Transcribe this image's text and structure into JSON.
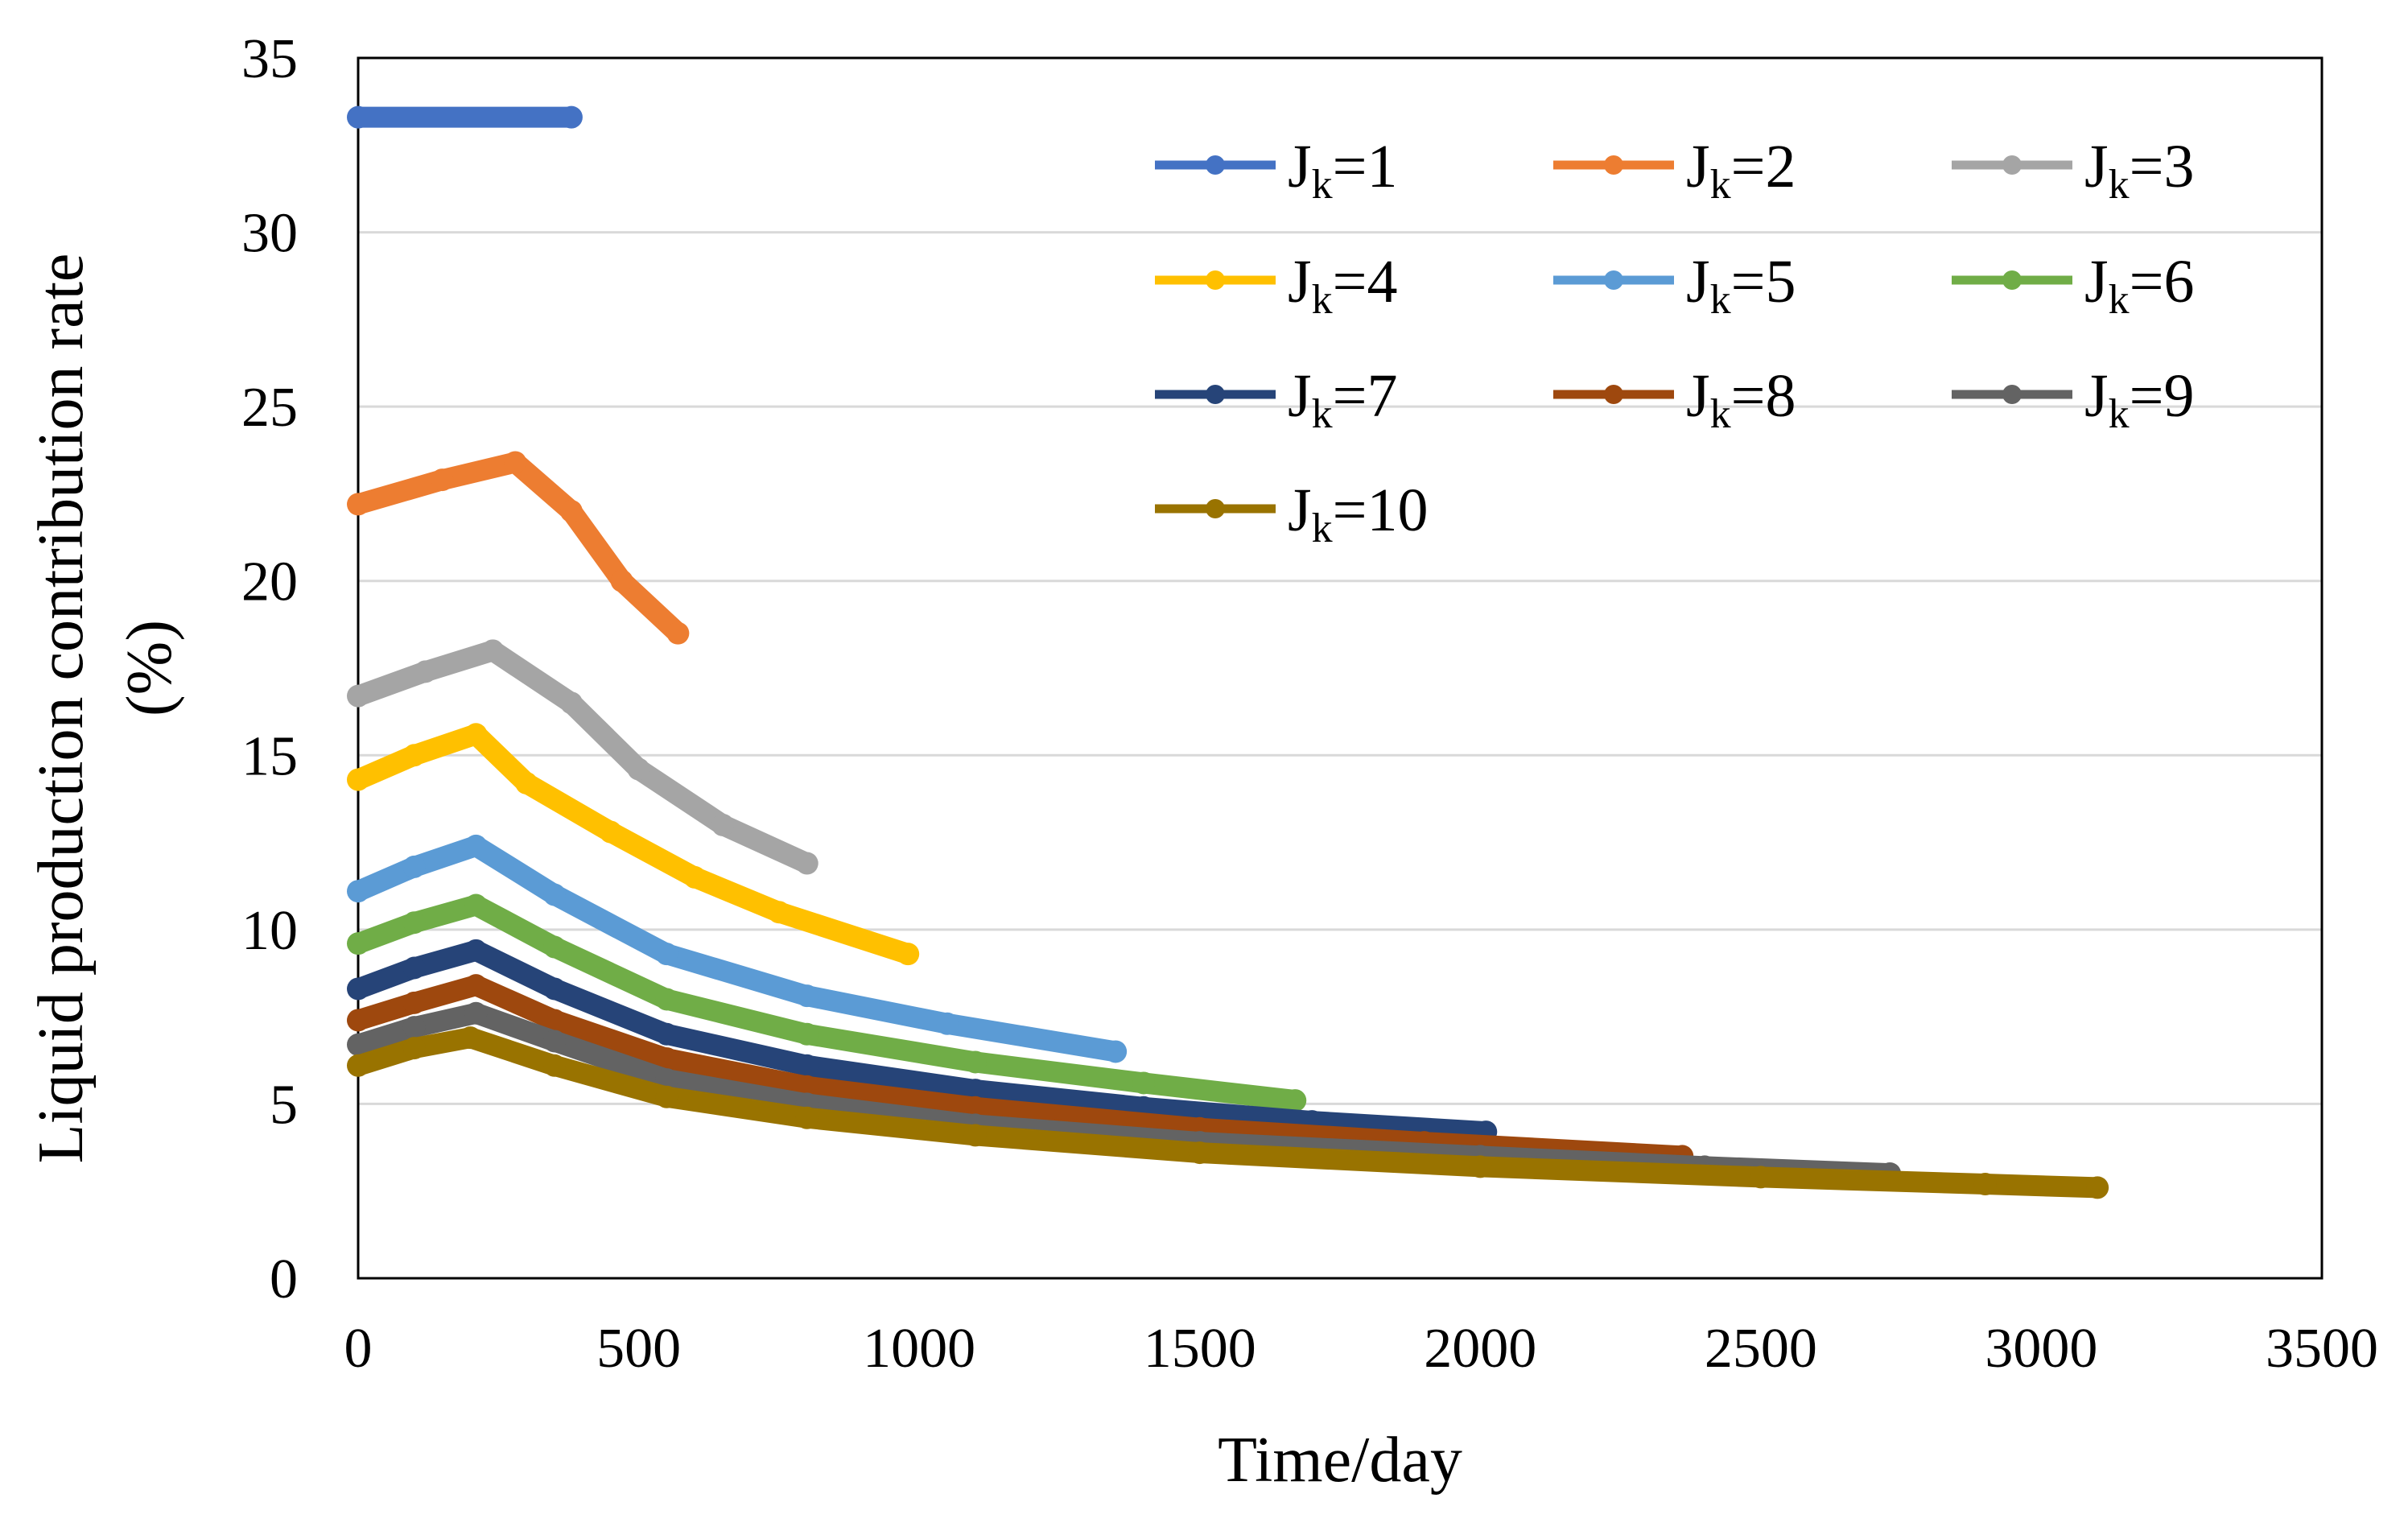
{
  "chart_data": {
    "type": "line",
    "title": "",
    "xlabel": "Time/day",
    "ylabel": "Liquid production contribution rate (%)",
    "ylabel_lines": [
      "Liquid production contribution rate",
      "(%)"
    ],
    "xlim": [
      0,
      3500
    ],
    "ylim": [
      0,
      35
    ],
    "x_ticks": [
      "0",
      "500",
      "1000",
      "1500",
      "2000",
      "2500",
      "3000",
      "3500"
    ],
    "y_ticks": [
      "0",
      "5",
      "10",
      "15",
      "20",
      "25",
      "30",
      "35"
    ],
    "grid": "horizontal",
    "legend_position": "top-right",
    "series": [
      {
        "name": "Jk=1",
        "label_main": "J",
        "label_sub": "k",
        "label_tail": "=1",
        "color": "#4472C4",
        "x": [
          0,
          380
        ],
        "y": [
          33.3,
          33.3
        ]
      },
      {
        "name": "Jk=2",
        "label_main": "J",
        "label_sub": "k",
        "label_tail": "=2",
        "color": "#ED7D31",
        "x": [
          0,
          150,
          280,
          380,
          470,
          570
        ],
        "y": [
          22.2,
          22.9,
          23.4,
          22.0,
          20.0,
          18.5
        ]
      },
      {
        "name": "Jk=3",
        "label_main": "J",
        "label_sub": "k",
        "label_tail": "=3",
        "color": "#A5A5A5",
        "x": [
          0,
          120,
          240,
          380,
          500,
          650,
          800
        ],
        "y": [
          16.7,
          17.4,
          18.0,
          16.5,
          14.6,
          13.0,
          11.9
        ]
      },
      {
        "name": "Jk=4",
        "label_main": "J",
        "label_sub": "k",
        "label_tail": "=4",
        "color": "#FFC000",
        "x": [
          0,
          100,
          210,
          300,
          450,
          600,
          750,
          980
        ],
        "y": [
          14.3,
          15.0,
          15.6,
          14.2,
          12.8,
          11.5,
          10.5,
          9.3
        ]
      },
      {
        "name": "Jk=5",
        "label_main": "J",
        "label_sub": "k",
        "label_tail": "=5",
        "color": "#5B9BD5",
        "x": [
          0,
          100,
          210,
          350,
          550,
          800,
          1050,
          1350
        ],
        "y": [
          11.1,
          11.8,
          12.4,
          11.0,
          9.3,
          8.1,
          7.3,
          6.5
        ]
      },
      {
        "name": "Jk=6",
        "label_main": "J",
        "label_sub": "k",
        "label_tail": "=6",
        "color": "#70AD47",
        "x": [
          0,
          100,
          210,
          350,
          550,
          800,
          1100,
          1400,
          1670
        ],
        "y": [
          9.6,
          10.2,
          10.7,
          9.5,
          8.0,
          7.0,
          6.2,
          5.6,
          5.1
        ]
      },
      {
        "name": "Jk=7",
        "label_main": "J",
        "label_sub": "k",
        "label_tail": "=7",
        "color": "#264478",
        "x": [
          0,
          100,
          210,
          350,
          550,
          800,
          1100,
          1400,
          1700,
          2010
        ],
        "y": [
          8.3,
          8.9,
          9.4,
          8.3,
          7.0,
          6.1,
          5.4,
          4.9,
          4.5,
          4.2
        ]
      },
      {
        "name": "Jk=8",
        "label_main": "J",
        "label_sub": "k",
        "label_tail": "=8",
        "color": "#9E480E",
        "x": [
          0,
          100,
          210,
          350,
          550,
          800,
          1100,
          1500,
          1900,
          2360
        ],
        "y": [
          7.4,
          7.9,
          8.4,
          7.4,
          6.3,
          5.5,
          4.9,
          4.3,
          3.9,
          3.5
        ]
      },
      {
        "name": "Jk=9",
        "label_main": "J",
        "label_sub": "k",
        "label_tail": "=9",
        "color": "#636363",
        "x": [
          0,
          100,
          210,
          350,
          550,
          800,
          1100,
          1500,
          2000,
          2400,
          2730
        ],
        "y": [
          6.7,
          7.2,
          7.6,
          6.8,
          5.7,
          5.0,
          4.4,
          3.9,
          3.5,
          3.2,
          3.0
        ]
      },
      {
        "name": "Jk=10",
        "label_main": "J",
        "label_sub": "k",
        "label_tail": "=10",
        "color": "#997300",
        "x": [
          0,
          100,
          200,
          350,
          550,
          800,
          1100,
          1500,
          2000,
          2500,
          2900,
          3100
        ],
        "y": [
          6.1,
          6.6,
          6.9,
          6.1,
          5.2,
          4.6,
          4.1,
          3.6,
          3.2,
          2.9,
          2.7,
          2.6
        ]
      }
    ]
  }
}
